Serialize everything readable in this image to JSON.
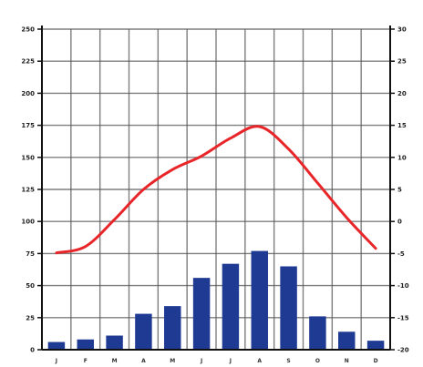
{
  "chart_data": {
    "type": "bar",
    "title": "",
    "xlabel": "",
    "ylabel": "",
    "categories": [
      "J",
      "F",
      "M",
      "A",
      "M",
      "J",
      "J",
      "A",
      "S",
      "O",
      "N",
      "D"
    ],
    "series": [
      {
        "type": "bar",
        "axis": "left",
        "values": [
          6,
          8,
          11,
          28,
          34,
          56,
          67,
          77,
          65,
          26,
          14,
          7
        ]
      },
      {
        "type": "line",
        "axis": "right",
        "values": [
          -4.9,
          -3.9,
          0.3,
          5.0,
          8.1,
          10.2,
          13.0,
          14.8,
          11.3,
          6.0,
          0.6,
          -4.2
        ]
      }
    ],
    "ylim_left": [
      0,
      250
    ],
    "yticks_left": [
      "0",
      "25",
      "50",
      "75",
      "100",
      "125",
      "150",
      "175",
      "200",
      "225",
      "250"
    ],
    "ylim_right": [
      -20,
      30
    ],
    "yticks_right": [
      "-20",
      "-15",
      "-10",
      "-5",
      "0",
      "5",
      "10",
      "15",
      "20",
      "25",
      "30"
    ],
    "grid": true,
    "colors": {
      "bar": "#1f3a93",
      "line": "#e8262a",
      "grid": "#555555"
    }
  }
}
